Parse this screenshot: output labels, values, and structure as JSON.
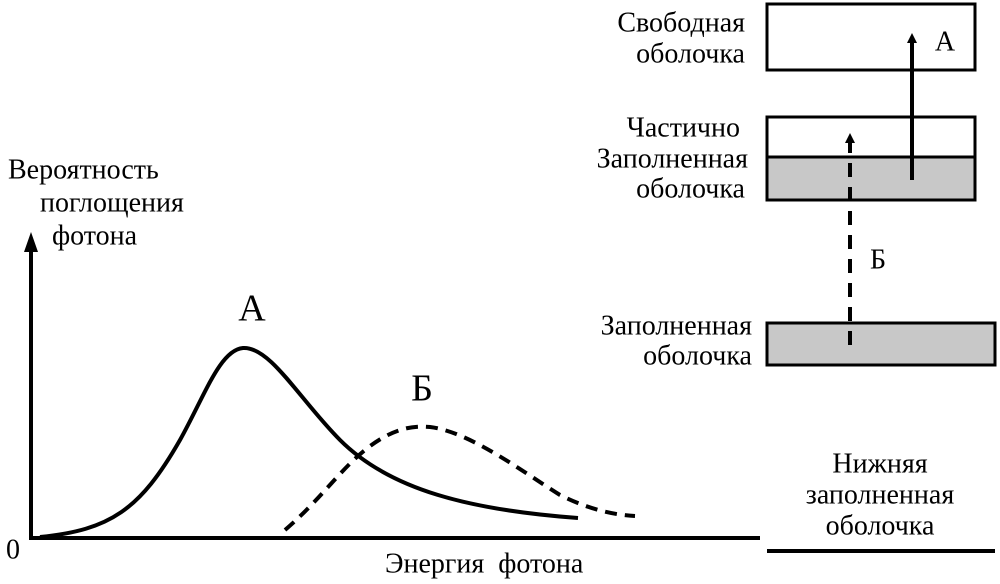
{
  "graph": {
    "y_axis_label": [
      "Вероятность",
      "поглощения",
      "фотона"
    ],
    "origin": "0",
    "x_axis_label": "Энергия  фотона",
    "curves": [
      {
        "label": "А"
      },
      {
        "label": "Б"
      }
    ]
  },
  "levels": [
    {
      "label": [
        "Свободная",
        "оболочка"
      ]
    },
    {
      "label": [
        "Частично",
        "Заполненная",
        "оболочка"
      ]
    },
    {
      "label": [
        "Заполненная",
        "оболочка"
      ]
    },
    {
      "label": [
        "Нижняя",
        "заполненная",
        "оболочка"
      ]
    }
  ],
  "transitions": [
    {
      "label": "А"
    },
    {
      "label": "Б"
    }
  ]
}
